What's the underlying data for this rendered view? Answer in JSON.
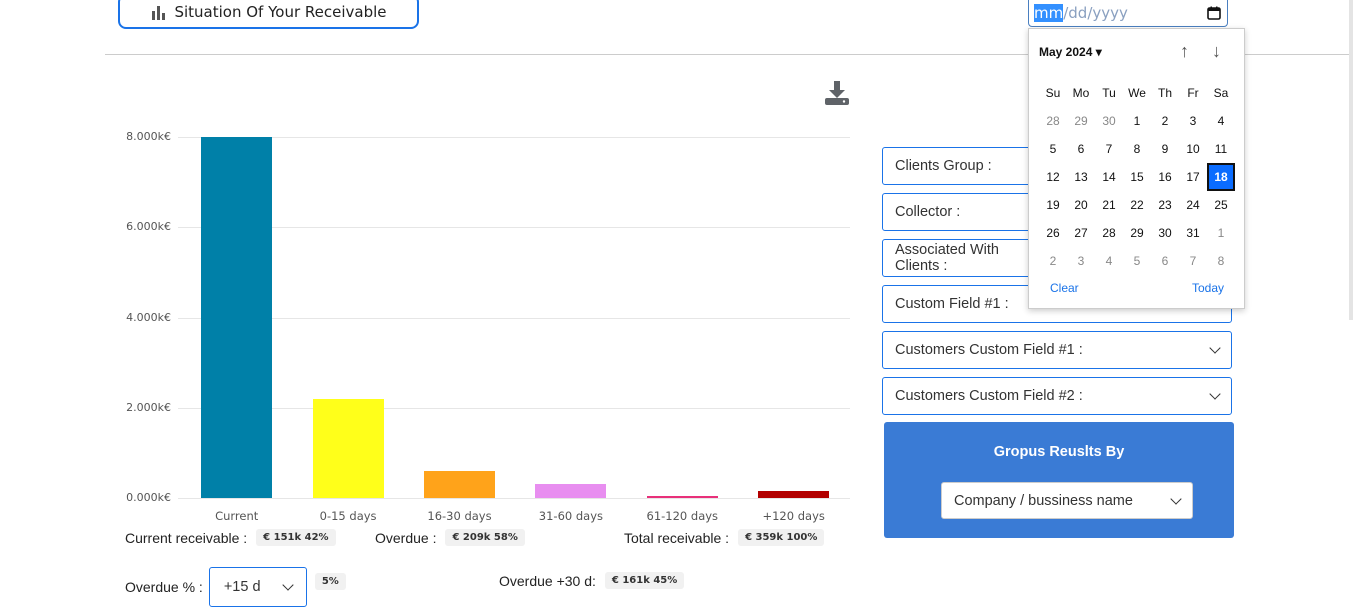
{
  "header": {
    "situation_button": "Situation Of Your Receivable"
  },
  "date_input": {
    "mm": "mm",
    "rest": "/dd/yyyy"
  },
  "calendar": {
    "month_label": "May 2024",
    "weekdays": [
      "Su",
      "Mo",
      "Tu",
      "We",
      "Th",
      "Fr",
      "Sa"
    ],
    "days": [
      [
        "28",
        "29",
        "30",
        "1",
        "2",
        "3",
        "4"
      ],
      [
        "5",
        "6",
        "7",
        "8",
        "9",
        "10",
        "11"
      ],
      [
        "12",
        "13",
        "14",
        "15",
        "16",
        "17",
        "18"
      ],
      [
        "19",
        "20",
        "21",
        "22",
        "23",
        "24",
        "25"
      ],
      [
        "26",
        "27",
        "28",
        "29",
        "30",
        "31",
        "1"
      ],
      [
        "2",
        "3",
        "4",
        "5",
        "6",
        "7",
        "8"
      ]
    ],
    "selected": "18",
    "clear": "Clear",
    "today": "Today"
  },
  "filters": [
    "Clients Group :",
    "Collector :",
    "Associated With Clients :",
    "Custom Field #1 :",
    "Customers Custom Field #1 :",
    "Customers Custom Field #2 :"
  ],
  "group": {
    "title": "Gropus Reuslts By",
    "value": "Company / bussiness name"
  },
  "chart_data": {
    "type": "bar",
    "categories": [
      "Current",
      "0-15 days",
      "16-30 days",
      "31-60 days",
      "61-120 days",
      "+120 days"
    ],
    "values": [
      8000,
      2200,
      600,
      300,
      40,
      150
    ],
    "colors": [
      "#0080a8",
      "#ffff1a",
      "#ffa31a",
      "#e88ef0",
      "#e8307a",
      "#b30000"
    ],
    "yticks": [
      "0.000k€",
      "2.000k€",
      "4.000k€",
      "6.000k€",
      "8.000k€"
    ],
    "ylim": [
      0,
      8000
    ],
    "grid": true
  },
  "summary": {
    "current_label": "Current receivable :",
    "current_value": "€  151k  42%",
    "overdue_label": "Overdue :",
    "overdue_value": "€  209k  58%",
    "total_label": "Total receivable :",
    "total_value": "€  359k  100%",
    "overdue_pct_label": "Overdue % :",
    "overdue_pct_select": "+15 d",
    "overdue_pct_value": "5%",
    "overdue30_label": "Overdue +30 d:",
    "overdue30_value": "€  161k  45%"
  }
}
